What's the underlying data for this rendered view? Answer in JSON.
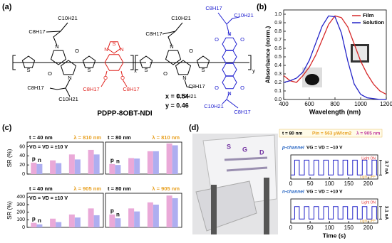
{
  "panel_labels": [
    "(a)",
    "(b)",
    "(c)",
    "(d)"
  ],
  "structure": {
    "name": "PDPP-8OBT-NDI",
    "composition": [
      "x = 0.54",
      "y = 0.46"
    ],
    "labels": [
      "C10H21",
      "C8H17",
      "N",
      "O",
      "O",
      "N",
      "C8H17",
      "C10H21",
      "S",
      "S",
      "S",
      "N",
      "N",
      "O",
      "O",
      "C8H17",
      "C8H17",
      "x",
      "C10H21",
      "C8H17",
      "N",
      "O",
      "O",
      "N",
      "C8H17",
      "C10H21",
      "S",
      "S",
      "N",
      "O",
      "O",
      "C8H17",
      "C10H21",
      "N",
      "O",
      "O",
      "C10H21",
      "C8H17",
      "y"
    ]
  },
  "photo": {
    "labels": [
      "S",
      "G",
      "D"
    ]
  },
  "chart_data": [
    {
      "type": "line",
      "xlabel": "Wavelength (nm)",
      "ylabel": "Absorbance (norm.)",
      "x": [
        400,
        450,
        500,
        550,
        600,
        650,
        700,
        750,
        800,
        850,
        900,
        950,
        1000,
        1050,
        1100,
        1150,
        1200
      ],
      "series": [
        {
          "name": "Film",
          "color": "#d62728",
          "values": [
            0.28,
            0.22,
            0.2,
            0.28,
            0.38,
            0.52,
            0.7,
            0.88,
            0.98,
            0.96,
            0.85,
            0.65,
            0.45,
            0.3,
            0.18,
            0.1,
            0.06
          ]
        },
        {
          "name": "Solution",
          "color": "#2222c8",
          "values": [
            0.2,
            0.22,
            0.25,
            0.32,
            0.46,
            0.66,
            0.86,
            0.98,
            0.97,
            0.78,
            0.45,
            0.18,
            0.06,
            0.02,
            0.01,
            0,
            0
          ]
        }
      ],
      "xlim": [
        400,
        1200
      ],
      "xticks": [
        400,
        600,
        800,
        1000,
        1200
      ],
      "ylim": [
        0,
        1.05
      ],
      "yticks": [
        {
          "value": 0,
          "label": "0.0"
        },
        0.1,
        0.2,
        0.3,
        0.4,
        0.5,
        0.6,
        0.7,
        0.8,
        0.9,
        {
          "value": 1,
          "label": "1.0"
        }
      ],
      "legend": "upper right"
    },
    {
      "type": "bar",
      "title": "t = 40 nm",
      "subtitle": "λ = 810 nm",
      "annotation": "VG = VD = ±10 V",
      "ylabel": "SR (%)",
      "categories": [
        null,
        null,
        null,
        null
      ],
      "series": [
        {
          "name": "p",
          "color": "#eaa9d8",
          "values": [
            25,
            30,
            43,
            53
          ]
        },
        {
          "name": "n",
          "color": "#aeaef0",
          "values": [
            22,
            24,
            32,
            43
          ]
        }
      ],
      "ylim": [
        0,
        70
      ],
      "yticks": [
        0,
        20,
        40,
        60
      ]
    },
    {
      "type": "bar",
      "title": "t = 80 nm",
      "subtitle": "λ = 810 nm",
      "categories": [
        null,
        null,
        null,
        null
      ],
      "series": [
        {
          "name": "p",
          "color": "#eaa9d8",
          "values": [
            22,
            35,
            50,
            67
          ]
        },
        {
          "name": "n",
          "color": "#aeaef0",
          "values": [
            20,
            34,
            50,
            63
          ]
        }
      ],
      "ylim": [
        0,
        70
      ]
    },
    {
      "type": "bar",
      "title": "t = 40 nm",
      "subtitle": "λ = 905 nm",
      "annotation": "VG = VD = ±10 V",
      "ylabel": "SR (%)",
      "categories": [
        null,
        null,
        null,
        null
      ],
      "series": [
        {
          "name": "p",
          "color": "#eaa9d8",
          "values": [
            60,
            115,
            170,
            250
          ]
        },
        {
          "name": "n",
          "color": "#aeaef0",
          "values": [
            40,
            70,
            130,
            160
          ]
        }
      ],
      "ylim": [
        0,
        450
      ],
      "yticks": [
        0,
        100,
        200,
        300,
        400
      ]
    },
    {
      "type": "bar",
      "title": "t = 80 nm",
      "subtitle": "λ = 905 nm",
      "categories": [
        null,
        null,
        null,
        null
      ],
      "series": [
        {
          "name": "p",
          "color": "#eaa9d8",
          "values": [
            170,
            250,
            330,
            420
          ]
        },
        {
          "name": "n",
          "color": "#aeaef0",
          "values": [
            120,
            210,
            300,
            385
          ]
        }
      ],
      "ylim": [
        0,
        450
      ]
    },
    {
      "type": "trace",
      "header": [
        "t = 80 nm",
        "Pin = 563 μW/cm2",
        "λ = 905 nm"
      ],
      "label": "p-channel",
      "annotation": "VG = VD = −10 V",
      "light_labels": [
        "Light ON",
        "Light OFF"
      ],
      "color": "#2222c8",
      "x": [
        0,
        10,
        10,
        22,
        22,
        35,
        35,
        47,
        47,
        60,
        60,
        72,
        72,
        85,
        85,
        97,
        97,
        110,
        110,
        122,
        122,
        135,
        135,
        147,
        147,
        160,
        160,
        172,
        172,
        185,
        185,
        197,
        197,
        210,
        210,
        222,
        222,
        225
      ],
      "values": [
        0,
        0,
        3.7,
        3.7,
        0,
        0,
        3.7,
        3.7,
        0,
        0,
        3.7,
        3.7,
        0,
        0,
        3.7,
        3.7,
        0,
        0,
        3.7,
        3.7,
        0,
        0,
        3.7,
        3.7,
        0,
        0,
        3.7,
        3.7,
        0,
        0,
        3.7,
        3.7,
        0,
        0,
        3.7,
        3.7,
        0,
        0
      ],
      "scale_bar": {
        "value": 3.7,
        "label": "3.7 nA"
      },
      "xlim": [
        0,
        225
      ],
      "xticks": [
        0,
        50,
        100,
        150,
        200
      ],
      "ylim": [
        -1,
        5
      ]
    },
    {
      "type": "trace",
      "label": "n-channel",
      "annotation": "VG = VD = +10 V",
      "light_labels": [
        "Light ON",
        "Light OFF"
      ],
      "color": "#2222c8",
      "xlabel": "Time (s)",
      "x": [
        0,
        10,
        10,
        22,
        22,
        35,
        35,
        47,
        47,
        60,
        60,
        72,
        72,
        85,
        85,
        97,
        97,
        110,
        110,
        122,
        122,
        135,
        135,
        147,
        147,
        160,
        160,
        172,
        172,
        185,
        185,
        197,
        197,
        210,
        210,
        222,
        222,
        225
      ],
      "values": [
        0,
        0,
        3.1,
        3.1,
        0,
        0,
        3.1,
        3.1,
        0,
        0,
        3.1,
        3.1,
        0,
        0,
        3.1,
        3.1,
        0,
        0,
        3.1,
        3.1,
        0,
        0,
        3.1,
        3.1,
        0,
        0,
        3.1,
        3.1,
        0,
        0,
        3.1,
        3.1,
        0,
        0,
        3.1,
        3.1,
        0,
        0
      ],
      "scale_bar": {
        "value": 3.1,
        "label": "3.1 nA"
      },
      "xlim": [
        0,
        225
      ],
      "xticks": [
        0,
        50,
        100,
        150,
        200
      ],
      "ylim": [
        -1,
        5
      ]
    }
  ]
}
